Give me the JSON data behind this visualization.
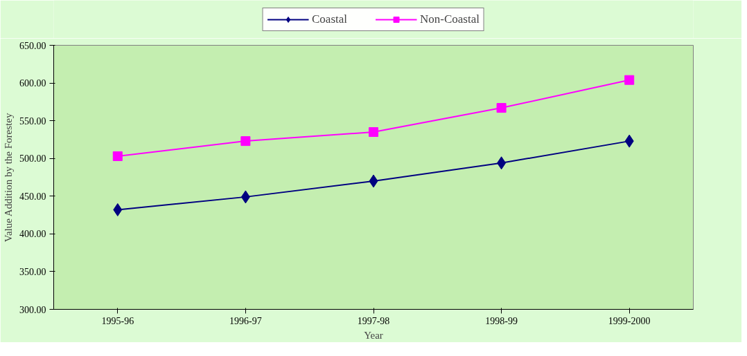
{
  "chart_data": {
    "type": "line",
    "xlabel": "Year",
    "ylabel": "Value Addition by the Forestey",
    "categories": [
      "1995-96",
      "1996-97",
      "1997-98",
      "1998-99",
      "1999-2000"
    ],
    "series": [
      {
        "name": "Coastal",
        "color": "#000080",
        "marker": "diamond",
        "values": [
          432,
          449,
          470,
          494,
          523
        ]
      },
      {
        "name": "Non-Coastal",
        "color": "#ff00ff",
        "marker": "square",
        "values": [
          503,
          523,
          535,
          567,
          604
        ]
      }
    ],
    "ylim": [
      300,
      650
    ],
    "yticks": [
      {
        "value": 300,
        "label": "300.00"
      },
      {
        "value": 350,
        "label": "350.00"
      },
      {
        "value": 400,
        "label": "400.00"
      },
      {
        "value": 450,
        "label": "450.00"
      },
      {
        "value": 500,
        "label": "500.00"
      },
      {
        "value": 550,
        "label": "550.00"
      },
      {
        "value": 600,
        "label": "600.00"
      },
      {
        "value": 650,
        "label": "650.00"
      }
    ],
    "grid": false,
    "legend": "top",
    "line_style": "solid"
  }
}
